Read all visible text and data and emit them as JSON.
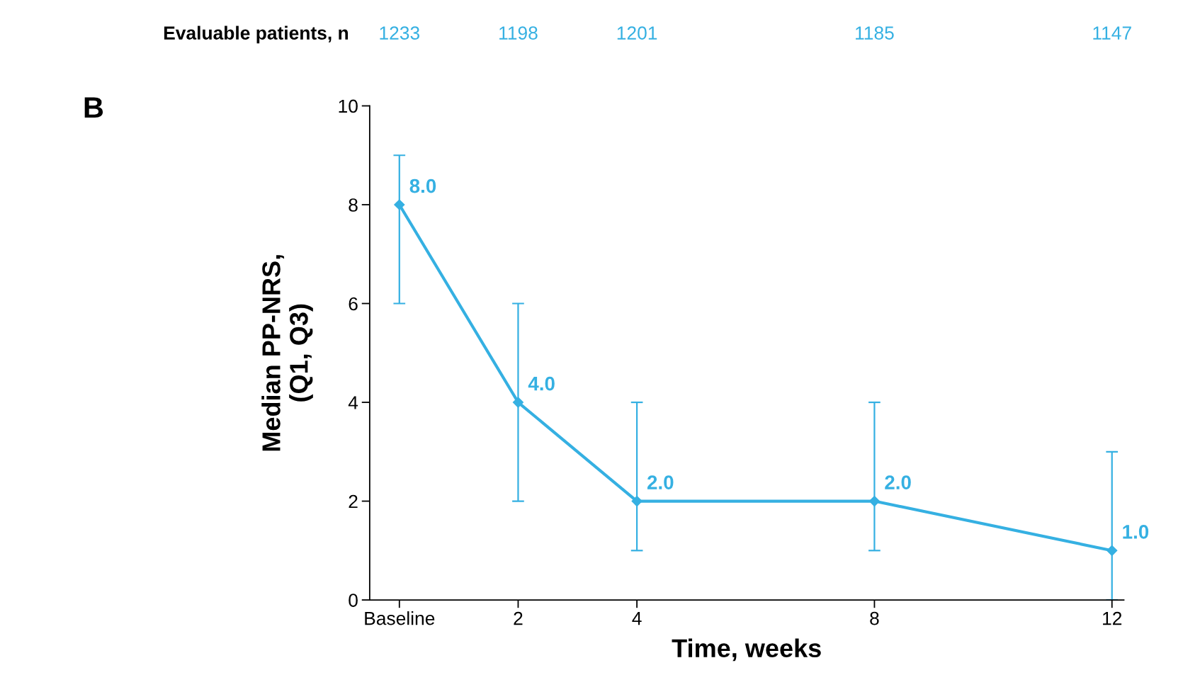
{
  "chart_data": {
    "type": "line",
    "xlabel": "Time, weeks",
    "ylabel": "Median PP-NRS,\n(Q1, Q3)",
    "x": [
      0,
      2,
      4,
      8,
      12
    ],
    "series": [
      {
        "color": "#35b0e2",
        "values": [
          8.0,
          4.0,
          2.0,
          2.0,
          1.0
        ],
        "errors": [
          [
            6,
            9
          ],
          [
            2,
            6
          ],
          [
            1,
            4
          ],
          [
            1,
            4
          ],
          [
            0,
            3
          ]
        ],
        "value_labels": [
          "8.0",
          "4.0",
          "2.0",
          "2.0",
          "1.0"
        ]
      }
    ],
    "marker": "diamond",
    "line_style": "solid",
    "grid": false,
    "legend": false,
    "xlim": [
      -0.5,
      12.2
    ],
    "xticks": [
      {
        "value": 0,
        "label": "Baseline"
      },
      2,
      4,
      8,
      12
    ],
    "ylim": [
      0,
      10
    ],
    "yticks": [
      0,
      2,
      4,
      6,
      8,
      10
    ],
    "annotations": [
      "B",
      "Evaluable patients, n",
      "1233",
      "1198",
      "1201",
      "1185",
      "1147"
    ]
  }
}
